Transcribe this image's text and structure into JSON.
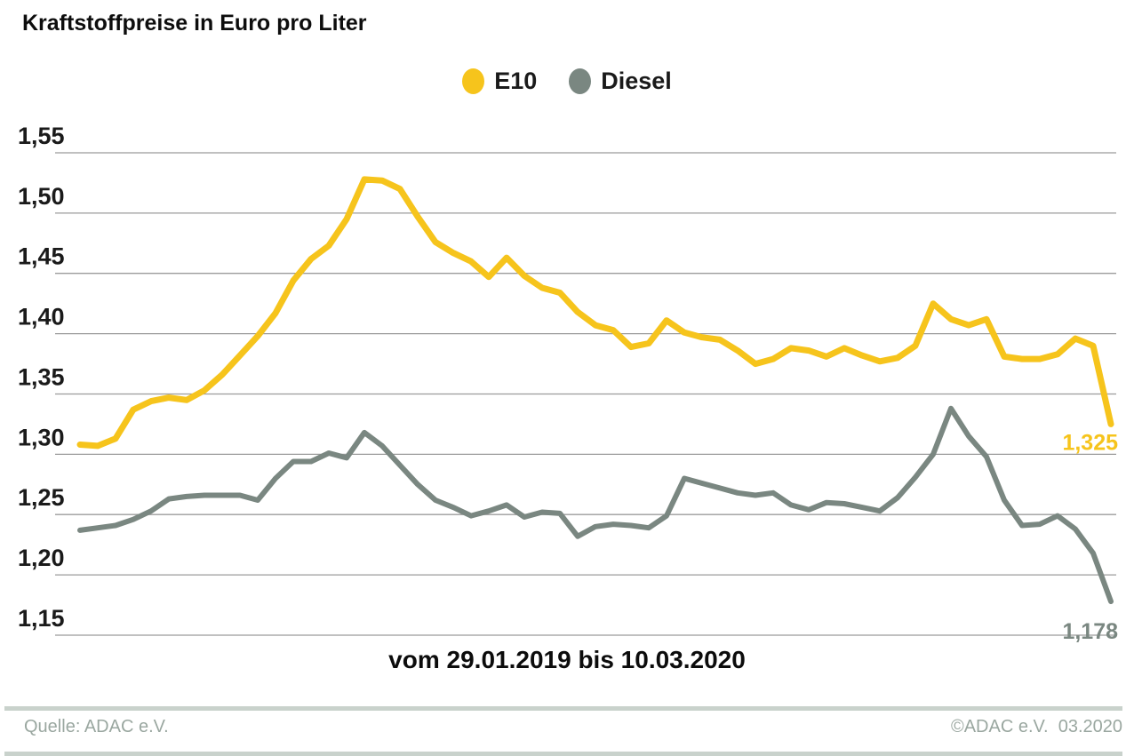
{
  "title": "Kraftstoffpreise in Euro pro Liter",
  "legend": [
    {
      "label": "E10",
      "color": "#F6C41C"
    },
    {
      "label": "Diesel",
      "color": "#7A8781"
    }
  ],
  "footer": {
    "source": "Quelle: ADAC e.V.",
    "copyright": "©ADAC e.V.  03.2020"
  },
  "colors": {
    "gridline": "#9B9B9B",
    "footer_bar": "#C9D2CC",
    "footer_text": "#9AA7A0",
    "title_text": "#0d0d0d"
  },
  "chart_data": {
    "type": "line",
    "title": "Kraftstoffpreise in Euro pro Liter",
    "x_caption": "vom 29.01.2019 bis 10.03.2020",
    "x_range": [
      "29.01.2019",
      "10.03.2020"
    ],
    "x_interval": "weekly",
    "ylim": [
      1.15,
      1.55
    ],
    "grid": true,
    "legend_position": "top-center",
    "y_ticks": [
      {
        "label": "1,55",
        "value": 1.55
      },
      {
        "label": "1,50",
        "value": 1.5
      },
      {
        "label": "1,45",
        "value": 1.45
      },
      {
        "label": "1,40",
        "value": 1.4
      },
      {
        "label": "1,35",
        "value": 1.35
      },
      {
        "label": "1,30",
        "value": 1.3
      },
      {
        "label": "1,25",
        "value": 1.25
      },
      {
        "label": "1,20",
        "value": 1.2
      },
      {
        "label": "1,15",
        "value": 1.15
      }
    ],
    "series": [
      {
        "name": "E10",
        "color": "#F6C41C",
        "end_label": "1,325",
        "values": [
          1.308,
          1.307,
          1.313,
          1.337,
          1.344,
          1.347,
          1.345,
          1.353,
          1.366,
          1.382,
          1.398,
          1.417,
          1.444,
          1.462,
          1.473,
          1.495,
          1.528,
          1.527,
          1.52,
          1.497,
          1.476,
          1.467,
          1.46,
          1.447,
          1.463,
          1.448,
          1.438,
          1.434,
          1.418,
          1.407,
          1.403,
          1.389,
          1.392,
          1.411,
          1.401,
          1.397,
          1.395,
          1.386,
          1.375,
          1.379,
          1.388,
          1.386,
          1.381,
          1.388,
          1.382,
          1.377,
          1.38,
          1.39,
          1.425,
          1.412,
          1.407,
          1.412,
          1.381,
          1.379,
          1.379,
          1.383,
          1.396,
          1.39,
          1.325
        ]
      },
      {
        "name": "Diesel",
        "color": "#7A8781",
        "end_label": "1,178",
        "values": [
          1.237,
          1.239,
          1.241,
          1.246,
          1.253,
          1.263,
          1.265,
          1.266,
          1.266,
          1.266,
          1.262,
          1.28,
          1.294,
          1.294,
          1.301,
          1.297,
          1.318,
          1.307,
          1.291,
          1.275,
          1.262,
          1.256,
          1.249,
          1.253,
          1.258,
          1.248,
          1.252,
          1.251,
          1.232,
          1.24,
          1.242,
          1.241,
          1.239,
          1.249,
          1.28,
          1.276,
          1.272,
          1.268,
          1.266,
          1.268,
          1.258,
          1.254,
          1.26,
          1.259,
          1.256,
          1.253,
          1.264,
          1.281,
          1.3,
          1.338,
          1.315,
          1.298,
          1.262,
          1.241,
          1.242,
          1.249,
          1.238,
          1.218,
          1.178
        ]
      }
    ]
  }
}
